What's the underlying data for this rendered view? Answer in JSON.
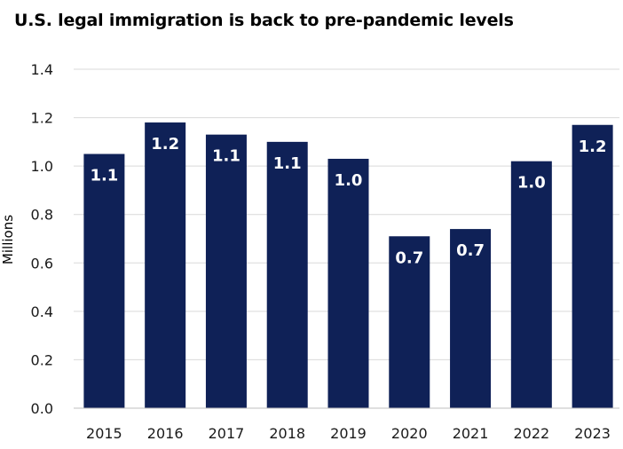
{
  "title": "U.S. legal immigration is back to pre-pandemic levels",
  "chart_data": {
    "type": "bar",
    "title": "U.S. legal immigration is back to pre-pandemic levels",
    "xlabel": "",
    "ylabel": "Millions",
    "categories": [
      "2015",
      "2016",
      "2017",
      "2018",
      "2019",
      "2020",
      "2021",
      "2022",
      "2023"
    ],
    "values": [
      1.05,
      1.18,
      1.13,
      1.1,
      1.03,
      0.71,
      0.74,
      1.02,
      1.17
    ],
    "data_labels": [
      "1.1",
      "1.2",
      "1.1",
      "1.1",
      "1.0",
      "0.7",
      "0.7",
      "1.0",
      "1.2"
    ],
    "ylim": [
      0,
      1.4
    ],
    "yticks": [
      0,
      0.2,
      0.4,
      0.6,
      0.8,
      1.0,
      1.2,
      1.4
    ],
    "ytick_labels": [
      "0.0",
      "0.2",
      "0.4",
      "0.6",
      "0.8",
      "1.0",
      "1.2",
      "1.4"
    ],
    "grid": true,
    "legend": "none",
    "colors": {
      "bar": "#0f2157",
      "grid": "#d9d9d9",
      "axis": "#bfbfbf",
      "label": "#ffffff"
    }
  }
}
